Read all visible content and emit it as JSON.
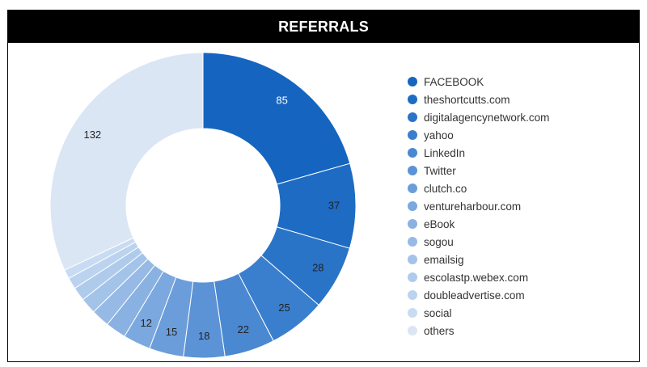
{
  "header": {
    "title": "REFERRALS"
  },
  "chart_data": {
    "type": "pie",
    "style": "donut",
    "title": "REFERRALS",
    "legend_position": "right",
    "slices": [
      {
        "label": "FACEBOOK",
        "value": 85,
        "color": "#1565c0"
      },
      {
        "label": "theshortcutts.com",
        "value": 37,
        "color": "#1e6bc4"
      },
      {
        "label": "digitalagencynetwork.com",
        "value": 28,
        "color": "#2a74c8"
      },
      {
        "label": "yahoo",
        "value": 25,
        "color": "#3a7fcd"
      },
      {
        "label": "LinkedIn",
        "value": 22,
        "color": "#4a88d1"
      },
      {
        "label": "Twitter",
        "value": 18,
        "color": "#5b93d6"
      },
      {
        "label": "clutch.co",
        "value": 15,
        "color": "#6b9dda"
      },
      {
        "label": "ventureharbour.com",
        "value": 12,
        "color": "#7ba8de"
      },
      {
        "label": "eBook",
        "value": 9,
        "color": "#89b1e2"
      },
      {
        "label": "sogou",
        "value": 8,
        "color": "#96bae5"
      },
      {
        "label": "emailsig",
        "value": 7,
        "color": "#a3c3e9"
      },
      {
        "label": "escolastp.webex.com",
        "value": 6,
        "color": "#afcbec"
      },
      {
        "label": "doubleadvertise.com",
        "value": 5,
        "color": "#bbd3ef"
      },
      {
        "label": "social",
        "value": 4,
        "color": "#c8dbf2"
      },
      {
        "label": "others",
        "value": 132,
        "color": "#dbe6f5"
      }
    ],
    "visible_value_labels": [
      "85",
      "37",
      "28",
      "25",
      "22",
      "18",
      "15",
      "12",
      "132"
    ]
  }
}
